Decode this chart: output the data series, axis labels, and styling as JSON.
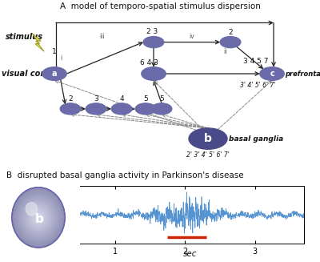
{
  "title_A": "A  model of temporo-spatial stimulus dispersion",
  "title_B": "B  disrupted basal ganglia activity in Parkinson's disease",
  "xlabel_B": "sec",
  "bg_color": "#ffffff",
  "fig_width": 4.0,
  "fig_height": 3.27,
  "dpi": 100,
  "node_color": "#6b6baa",
  "node_color_bg": "#555588",
  "signal_color": "#4488cc",
  "red_bar_color": "#cc2200",
  "arrow_color": "#222222",
  "dashed_color": "#888888"
}
